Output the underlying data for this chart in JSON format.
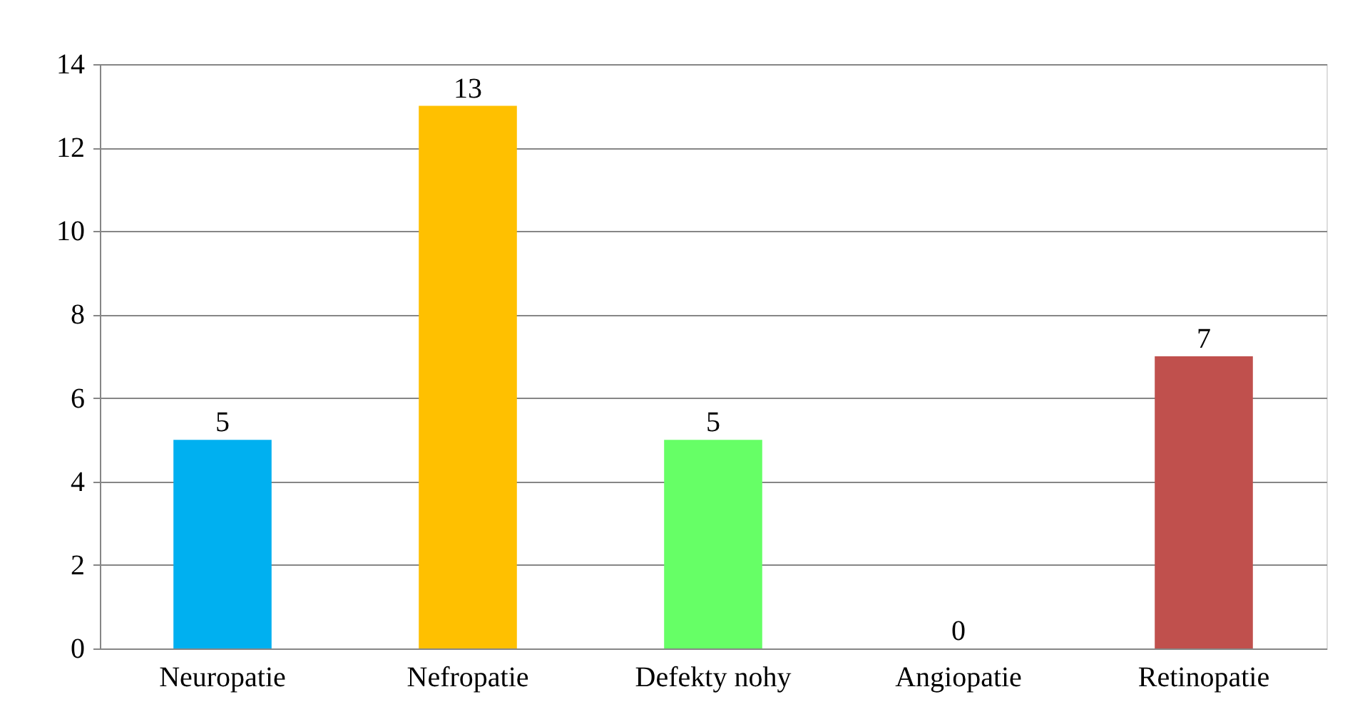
{
  "chart_data": {
    "type": "bar",
    "categories": [
      "Neuropatie",
      "Nefropatie",
      "Defekty nohy",
      "Angiopatie",
      "Retinopatie"
    ],
    "values": [
      5,
      13,
      5,
      0,
      7
    ],
    "colors": [
      "#00b0f0",
      "#ffc000",
      "#66ff66",
      "#9bbb59",
      "#c0504d"
    ],
    "ylim": [
      0,
      14
    ],
    "yticks": [
      0,
      2,
      4,
      6,
      8,
      10,
      12,
      14
    ],
    "grid": "y",
    "data_labels": true
  }
}
